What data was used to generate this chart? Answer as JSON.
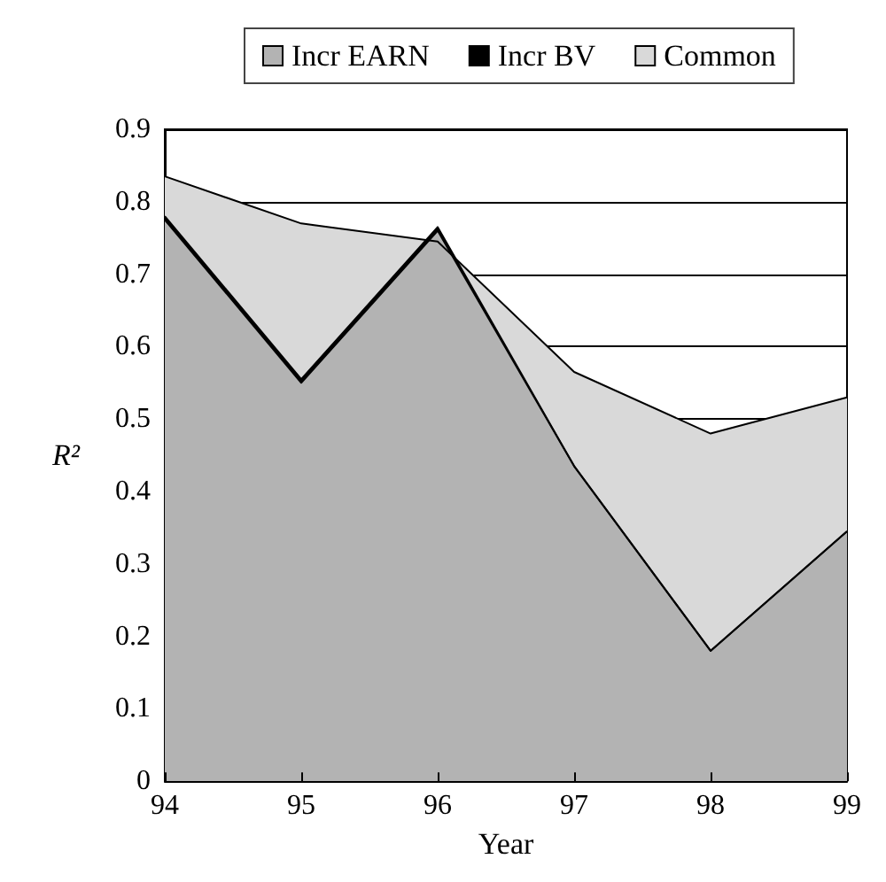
{
  "chart_data": {
    "type": "area",
    "xlabel": "Year",
    "ylabel": "R²",
    "categories": [
      "94",
      "95",
      "96",
      "97",
      "98",
      "99"
    ],
    "series": [
      {
        "name": "Incr EARN",
        "color": "#b3b3b3",
        "values": [
          0.775,
          0.55,
          0.76,
          0.435,
          0.18,
          0.345
        ]
      },
      {
        "name": "Incr BV",
        "color": "#000000",
        "values": [
          0.78,
          0.555,
          0.765,
          0.435,
          0.18,
          0.345
        ]
      },
      {
        "name": "Common",
        "color": "#d9d9d9",
        "values": [
          0.835,
          0.77,
          0.745,
          0.565,
          0.48,
          0.53
        ]
      }
    ],
    "ylim": [
      0,
      0.9
    ],
    "yticks": [
      0,
      0.1,
      0.2,
      0.3,
      0.4,
      0.5,
      0.6,
      0.7,
      0.8,
      0.9
    ],
    "grid": "y",
    "legend": "top"
  }
}
